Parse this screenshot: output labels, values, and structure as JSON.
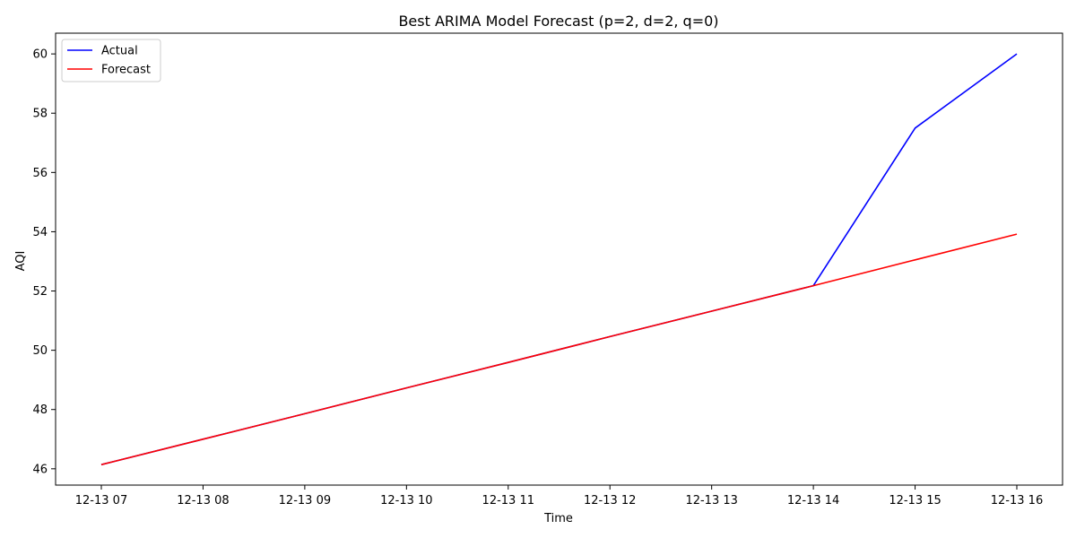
{
  "chart_data": {
    "type": "line",
    "title": "Best ARIMA Model Forecast (p=2, d=2, q=0)",
    "xlabel": "Time",
    "ylabel": "AQI",
    "x": [
      "12-13 07",
      "12-13 08",
      "12-13 09",
      "12-13 10",
      "12-13 11",
      "12-13 12",
      "12-13 13",
      "12-13 14",
      "12-13 15",
      "12-13 16"
    ],
    "ylim": [
      45.45,
      60.7
    ],
    "yticks": [
      46,
      48,
      50,
      52,
      54,
      56,
      58,
      60
    ],
    "grid": false,
    "legend_position": "top-left",
    "series": [
      {
        "name": "Actual",
        "color": "#0000ff",
        "values": [
          46.14,
          47.0,
          47.86,
          48.73,
          49.59,
          50.46,
          51.32,
          52.18,
          57.5,
          60.0
        ]
      },
      {
        "name": "Forecast",
        "color": "#ff0000",
        "values": [
          46.14,
          47.0,
          47.86,
          48.73,
          49.59,
          50.46,
          51.32,
          52.18,
          53.05,
          53.92
        ]
      }
    ]
  }
}
